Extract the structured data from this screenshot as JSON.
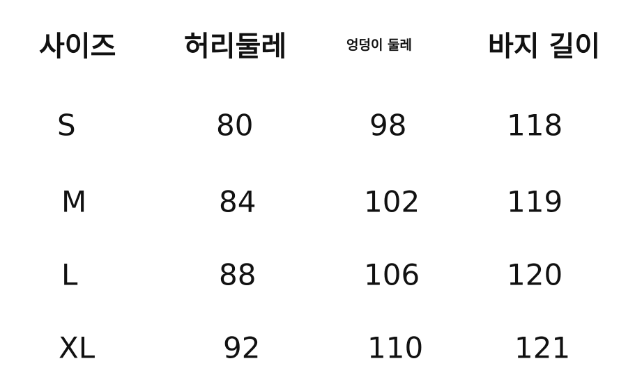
{
  "table": {
    "headers": [
      "사이즈",
      "허리둘레",
      "엉덩이 둘레",
      "바지 길이"
    ],
    "rows": [
      [
        "S",
        "80",
        "98",
        "118"
      ],
      [
        "M",
        "84",
        "102",
        "119"
      ],
      [
        "L",
        "88",
        "106",
        "120"
      ],
      [
        "XL",
        "92",
        "110",
        "121"
      ]
    ]
  }
}
